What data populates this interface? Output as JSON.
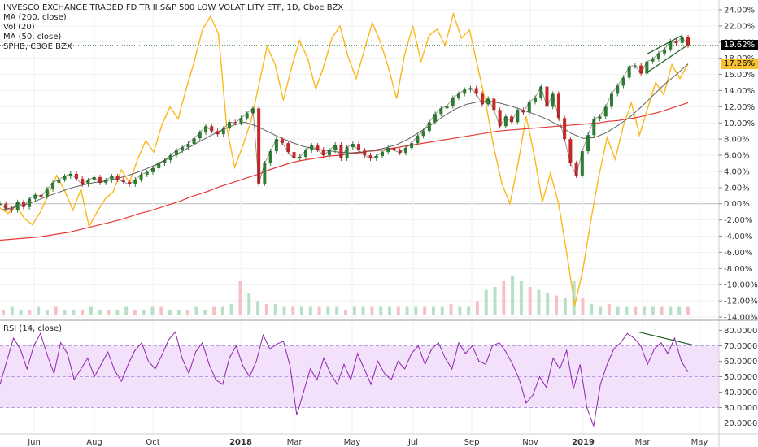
{
  "legend": {
    "title": "INVESCO EXCHANGE TRADED FD TR II S&P 500 LOW VOLATILITY ETF, 1D, Cboe BZX",
    "lines": [
      "MA (200, close)",
      "Vol (20)",
      "MA (50, close)",
      "SPHB, CBOE BZX"
    ]
  },
  "rsi_legend": "RSI (14, close)",
  "price_tags": [
    {
      "label": "19.62%",
      "color": "#ffffff",
      "bg": "#000000"
    },
    {
      "label": "17.26%",
      "color": "#000000",
      "bg": "#f7c132"
    }
  ],
  "colors": {
    "main": "#333333",
    "up": "#2e7d32",
    "down": "#c62828",
    "ma200": "#e53935",
    "ma50": "#616161",
    "sphb": "#f9b81b",
    "rsi": "#8e24aa",
    "rsi_band": "#f3e1fb",
    "vol_up": "#b7e0c6",
    "vol_down": "#f6c1c4",
    "vol_ma": "#f39c12",
    "trend": "#1b5e20"
  },
  "chart_data": [
    {
      "type": "line",
      "title": "INVESCO EXCHANGE TRADED FD TR II S&P 500 LOW VOLATILITY ETF, 1D, Cboe BZX",
      "x_ticks": [
        "Jun",
        "Aug",
        "Oct",
        "2018",
        "Mar",
        "May",
        "Jul",
        "Sep",
        "Nov",
        "2019",
        "Mar",
        "May"
      ],
      "y_ticks": [
        "24.00%",
        "22.00%",
        "20.00%",
        "18.00%",
        "16.00%",
        "14.00%",
        "12.00%",
        "10.00%",
        "8.00%",
        "6.00%",
        "4.00%",
        "2.00%",
        "0.00%",
        "-2.00%",
        "-4.00%",
        "-6.00%",
        "-8.00%",
        "-10.00%",
        "-12.00%",
        "-14.00%"
      ],
      "ylim": [
        -14,
        24
      ],
      "series": [
        {
          "name": "INVESCO EXCHANGE TRADED FD TR II S&P 500 LOW VOLATILITY ETF",
          "values": [
            0,
            -0.6,
            -0.8,
            0.2,
            -0.4,
            0.6,
            1.1,
            0.9,
            1.8,
            2.6,
            3.0,
            3.4,
            3.7,
            3.1,
            2.4,
            2.9,
            3.3,
            2.6,
            2.9,
            3.4,
            3.0,
            2.7,
            2.4,
            3.0,
            3.6,
            3.9,
            4.4,
            5.0,
            5.4,
            6.0,
            6.6,
            7.0,
            7.4,
            8.1,
            8.8,
            9.6,
            9.0,
            8.6,
            9.3,
            10.1,
            10.0,
            10.6,
            11.2,
            11.8,
            2.5,
            5.0,
            6.5,
            8.0,
            7.5,
            6.4,
            5.6,
            5.8,
            6.6,
            7.2,
            6.7,
            6.0,
            6.6,
            7.3,
            5.6,
            7.0,
            7.4,
            6.6,
            6.0,
            5.6,
            5.9,
            6.4,
            6.9,
            6.6,
            6.3,
            6.9,
            7.5,
            8.4,
            9.0,
            10.1,
            11.1,
            11.8,
            12.1,
            13.1,
            13.6,
            14.1,
            14.3,
            13.6,
            12.3,
            13.0,
            11.6,
            9.6,
            10.8,
            10.1,
            11.6,
            11.3,
            12.6,
            13.1,
            14.5,
            12.0,
            13.6,
            10.6,
            8.0,
            5.0,
            3.5,
            6.5,
            8.5,
            10.5,
            10.8,
            12.0,
            13.6,
            14.6,
            15.6,
            17.0,
            17.1,
            16.1,
            17.6,
            17.9,
            18.6,
            19.1,
            20.1,
            19.9,
            20.6,
            19.6
          ]
        },
        {
          "name": "MA (200, close)",
          "values": [
            -4.5,
            -4.4,
            -4.3,
            -4.2,
            -4.1,
            -3.9,
            -3.7,
            -3.5,
            -3.2,
            -2.9,
            -2.6,
            -2.3,
            -2.0,
            -1.6,
            -1.2,
            -0.9,
            -0.5,
            -0.1,
            0.3,
            0.8,
            1.2,
            1.6,
            2.1,
            2.5,
            2.9,
            3.3,
            3.7,
            4.2,
            4.6,
            5.0,
            5.3,
            5.5,
            5.7,
            5.9,
            6.0,
            6.2,
            6.3,
            6.5,
            6.6,
            6.8,
            7.0,
            7.2,
            7.4,
            7.6,
            7.8,
            8.0,
            8.2,
            8.4,
            8.6,
            8.8,
            9.0,
            9.1,
            9.2,
            9.3,
            9.4,
            9.5,
            9.6,
            9.7,
            9.8,
            9.9,
            10.0,
            10.2,
            10.3,
            10.5,
            10.7,
            11.0,
            11.3,
            11.7,
            12.1,
            12.5
          ]
        },
        {
          "name": "MA (50, close)",
          "values": [
            -0.8,
            -0.5,
            -0.2,
            0.3,
            0.9,
            1.4,
            1.9,
            2.3,
            2.6,
            2.8,
            3.1,
            3.5,
            4.0,
            4.6,
            5.3,
            6.0,
            6.8,
            7.6,
            8.4,
            9.1,
            9.7,
            10.1,
            9.6,
            8.9,
            8.2,
            7.6,
            7.1,
            6.8,
            6.6,
            6.4,
            6.3,
            6.4,
            6.6,
            6.9,
            7.3,
            8.0,
            8.9,
            9.8,
            10.8,
            11.7,
            12.3,
            12.6,
            12.7,
            12.4,
            12.0,
            11.5,
            11.0,
            10.4,
            9.6,
            8.7,
            8.1,
            8.2,
            8.8,
            9.7,
            10.7,
            12.0,
            13.4,
            14.8,
            16.0,
            17.3
          ]
        },
        {
          "name": "SPHB, CBOE BZX",
          "values": [
            -0.5,
            -1.2,
            -0.2,
            -1.8,
            -2.6,
            -1.0,
            1.2,
            3.5,
            1.6,
            -0.8,
            1.8,
            -2.8,
            -1.0,
            0.6,
            1.5,
            4.2,
            2.6,
            5.5,
            7.8,
            6.4,
            9.8,
            12.0,
            10.5,
            14.2,
            17.6,
            21.5,
            23.2,
            21.0,
            9.5,
            4.5,
            7.2,
            10.2,
            14.8,
            19.5,
            17.2,
            12.8,
            16.8,
            20.2,
            18.0,
            14.2,
            17.0,
            20.5,
            22.0,
            18.2,
            15.5,
            19.0,
            22.4,
            20.0,
            16.8,
            13.0,
            18.5,
            22.0,
            17.6,
            20.8,
            21.6,
            19.6,
            23.5,
            20.5,
            21.5,
            17.0,
            12.5,
            7.0,
            2.5,
            0.0,
            5.0,
            10.8,
            6.0,
            0.2,
            3.8,
            0.0,
            -6.0,
            -12.6,
            -8.2,
            -2.0,
            3.5,
            8.2,
            5.5,
            9.6,
            12.5,
            8.5,
            11.8,
            15.0,
            13.5,
            17.2,
            15.5,
            17.3
          ]
        }
      ]
    },
    {
      "type": "bar",
      "title": "Vol (20)",
      "values": [
        2,
        3,
        2,
        2,
        3,
        2,
        3,
        2,
        2,
        2,
        3,
        2,
        2,
        2,
        3,
        2,
        2,
        3,
        3,
        2,
        2,
        2,
        3,
        2,
        3,
        3,
        4,
        12,
        8,
        5,
        4,
        4,
        3,
        3,
        3,
        3,
        3,
        3,
        3,
        2,
        3,
        3,
        3,
        3,
        3,
        3,
        3,
        3,
        3,
        3,
        3,
        4,
        3,
        3,
        5,
        9,
        10,
        12,
        14,
        12,
        10,
        9,
        8,
        7,
        6,
        12,
        6,
        4,
        3,
        4,
        3,
        3,
        3,
        3,
        3,
        3,
        3,
        3,
        3
      ]
    },
    {
      "type": "line",
      "title": "RSI (14, close)",
      "y_ticks": [
        "80.0000",
        "70.0000",
        "60.0000",
        "50.0000",
        "40.0000",
        "30.0000",
        "20.0000"
      ],
      "ylim": [
        15,
        85
      ],
      "series": [
        {
          "name": "RSI (14, close)",
          "values": [
            45,
            60,
            75,
            68,
            55,
            70,
            78,
            64,
            52,
            72,
            65,
            48,
            55,
            62,
            50,
            58,
            66,
            54,
            47,
            58,
            67,
            72,
            60,
            55,
            64,
            74,
            79,
            62,
            52,
            66,
            72,
            58,
            48,
            45,
            62,
            70,
            57,
            50,
            60,
            77,
            68,
            71,
            73,
            57,
            25,
            40,
            55,
            48,
            62,
            52,
            45,
            58,
            48,
            65,
            55,
            45,
            60,
            52,
            48,
            60,
            55,
            65,
            70,
            58,
            68,
            72,
            62,
            55,
            72,
            65,
            70,
            60,
            58,
            70,
            72,
            66,
            58,
            48,
            33,
            38,
            50,
            43,
            62,
            55,
            67,
            42,
            58,
            30,
            18,
            45,
            58,
            68,
            72,
            78,
            75,
            70,
            58,
            68,
            72,
            65,
            75,
            60,
            53
          ]
        }
      ]
    }
  ]
}
